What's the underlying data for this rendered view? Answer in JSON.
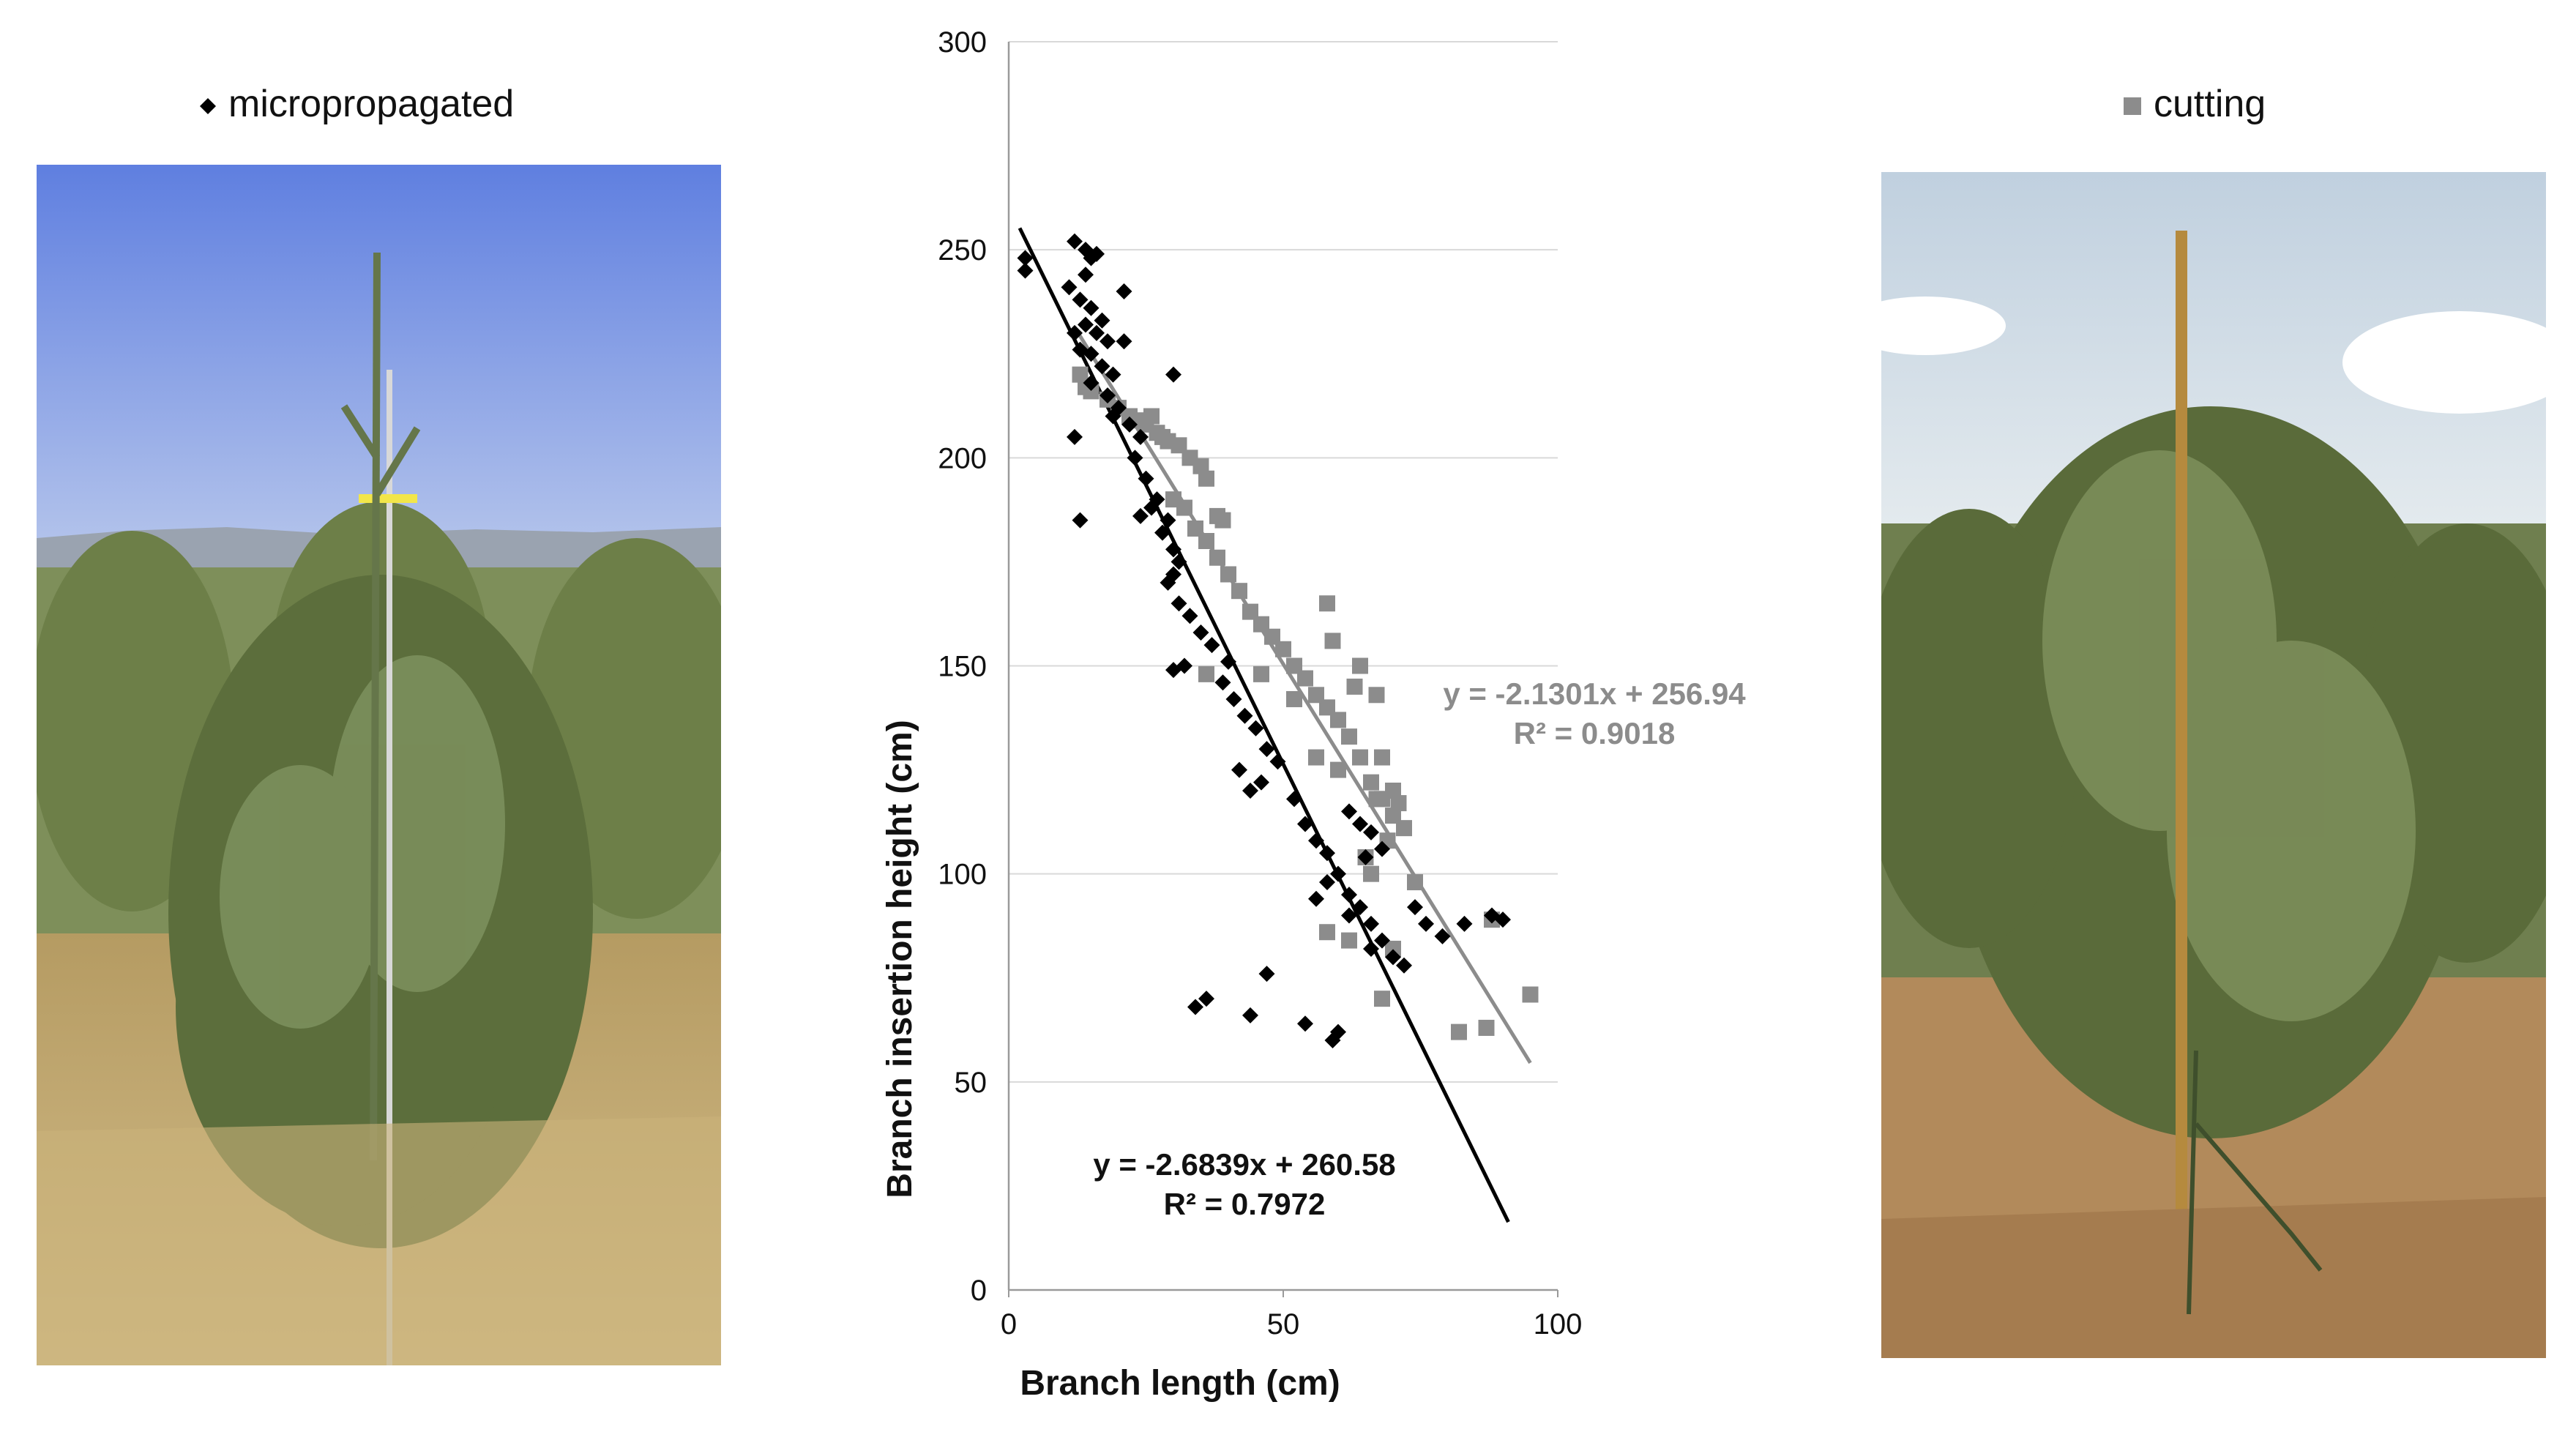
{
  "legend": {
    "micropropagated_label": "micropropagated",
    "cutting_label": "cutting"
  },
  "photos": {
    "left_icon": "olive-tree-photo",
    "right_icon": "olive-tree-photo"
  },
  "colors": {
    "micropropagated": "#000000",
    "cutting": "#8c8c8c",
    "micropropagated_line": "#000000",
    "cutting_line": "#8c8c8c",
    "grid": "#d9d9d9",
    "axis": "#9a9a9a"
  },
  "chart_data": {
    "type": "scatter",
    "xlabel": "Branch length (cm)",
    "ylabel": "Branch insertion height (cm)",
    "xlim": [
      0,
      100
    ],
    "ylim": [
      0,
      300
    ],
    "x_ticks": [
      "0",
      "50",
      "100"
    ],
    "y_ticks": [
      "0",
      "50",
      "100",
      "150",
      "200",
      "250",
      "300"
    ],
    "grid": "horizontal",
    "series": [
      {
        "name": "micropropagated",
        "marker": "diamond",
        "points": [
          [
            3,
            248
          ],
          [
            3,
            245
          ],
          [
            12,
            252
          ],
          [
            14,
            250
          ],
          [
            15,
            248
          ],
          [
            16,
            249
          ],
          [
            14,
            244
          ],
          [
            11,
            241
          ],
          [
            13,
            238
          ],
          [
            15,
            236
          ],
          [
            17,
            233
          ],
          [
            12,
            230
          ],
          [
            14,
            232
          ],
          [
            16,
            230
          ],
          [
            18,
            228
          ],
          [
            13,
            226
          ],
          [
            15,
            225
          ],
          [
            17,
            222
          ],
          [
            19,
            220
          ],
          [
            21,
            240
          ],
          [
            21,
            228
          ],
          [
            15,
            218
          ],
          [
            18,
            215
          ],
          [
            20,
            212
          ],
          [
            22,
            208
          ],
          [
            24,
            205
          ],
          [
            19,
            210
          ],
          [
            23,
            200
          ],
          [
            25,
            195
          ],
          [
            27,
            190
          ],
          [
            29,
            185
          ],
          [
            26,
            188
          ],
          [
            28,
            182
          ],
          [
            30,
            178
          ],
          [
            31,
            175
          ],
          [
            30,
            172
          ],
          [
            29,
            170
          ],
          [
            31,
            165
          ],
          [
            33,
            162
          ],
          [
            35,
            158
          ],
          [
            37,
            155
          ],
          [
            32,
            150
          ],
          [
            30,
            149
          ],
          [
            39,
            146
          ],
          [
            41,
            142
          ],
          [
            43,
            138
          ],
          [
            45,
            135
          ],
          [
            47,
            130
          ],
          [
            49,
            127
          ],
          [
            42,
            125
          ],
          [
            46,
            122
          ],
          [
            44,
            120
          ],
          [
            52,
            118
          ],
          [
            54,
            112
          ],
          [
            56,
            108
          ],
          [
            58,
            105
          ],
          [
            60,
            100
          ],
          [
            62,
            95
          ],
          [
            64,
            92
          ],
          [
            66,
            88
          ],
          [
            68,
            84
          ],
          [
            70,
            80
          ],
          [
            72,
            78
          ],
          [
            74,
            92
          ],
          [
            76,
            88
          ],
          [
            79,
            85
          ],
          [
            83,
            88
          ],
          [
            88,
            90
          ],
          [
            90,
            89
          ],
          [
            62,
            115
          ],
          [
            64,
            112
          ],
          [
            66,
            110
          ],
          [
            68,
            106
          ],
          [
            65,
            104
          ],
          [
            58,
            98
          ],
          [
            56,
            94
          ],
          [
            13,
            185
          ],
          [
            24,
            186
          ],
          [
            30,
            220
          ],
          [
            40,
            151
          ],
          [
            36,
            70
          ],
          [
            34,
            68
          ],
          [
            44,
            66
          ],
          [
            47,
            76
          ],
          [
            54,
            64
          ],
          [
            59,
            60
          ],
          [
            60,
            62
          ],
          [
            62,
            90
          ],
          [
            66,
            82
          ],
          [
            12,
            205
          ]
        ]
      },
      {
        "name": "cutting",
        "marker": "square",
        "points": [
          [
            13,
            220
          ],
          [
            14,
            217
          ],
          [
            15,
            216
          ],
          [
            18,
            214
          ],
          [
            20,
            212
          ],
          [
            22,
            210
          ],
          [
            24,
            209
          ],
          [
            25,
            208
          ],
          [
            26,
            210
          ],
          [
            27,
            206
          ],
          [
            28,
            205
          ],
          [
            29,
            204
          ],
          [
            31,
            203
          ],
          [
            33,
            200
          ],
          [
            35,
            198
          ],
          [
            36,
            195
          ],
          [
            38,
            186
          ],
          [
            39,
            185
          ],
          [
            30,
            190
          ],
          [
            32,
            188
          ],
          [
            34,
            183
          ],
          [
            36,
            180
          ],
          [
            38,
            176
          ],
          [
            40,
            172
          ],
          [
            42,
            168
          ],
          [
            44,
            163
          ],
          [
            46,
            160
          ],
          [
            48,
            157
          ],
          [
            50,
            154
          ],
          [
            52,
            150
          ],
          [
            54,
            147
          ],
          [
            56,
            143
          ],
          [
            58,
            140
          ],
          [
            60,
            137
          ],
          [
            62,
            133
          ],
          [
            64,
            128
          ],
          [
            66,
            122
          ],
          [
            68,
            118
          ],
          [
            70,
            114
          ],
          [
            72,
            111
          ],
          [
            74,
            98
          ],
          [
            63,
            145
          ],
          [
            64,
            150
          ],
          [
            59,
            156
          ],
          [
            58,
            165
          ],
          [
            67,
            143
          ],
          [
            52,
            142
          ],
          [
            46,
            148
          ],
          [
            36,
            148
          ],
          [
            56,
            128
          ],
          [
            60,
            125
          ],
          [
            65,
            104
          ],
          [
            66,
            100
          ],
          [
            67,
            118
          ],
          [
            70,
            120
          ],
          [
            68,
            128
          ],
          [
            69,
            108
          ],
          [
            71,
            117
          ],
          [
            58,
            86
          ],
          [
            62,
            84
          ],
          [
            70,
            82
          ],
          [
            68,
            70
          ],
          [
            82,
            62
          ],
          [
            87,
            63
          ],
          [
            88,
            89
          ],
          [
            95,
            71
          ]
        ]
      }
    ],
    "trendlines": [
      {
        "series": "micropropagated",
        "slope": -2.6839,
        "intercept": 260.58,
        "x_range": [
          2,
          91
        ],
        "equation": "y = -2.6839x + 260.58",
        "r2": "R² = 0.7972"
      },
      {
        "series": "cutting",
        "slope": -2.1301,
        "intercept": 256.94,
        "x_range": [
          12,
          95
        ],
        "equation": "y = -2.1301x + 256.94",
        "r2": "R² = 0.9018"
      }
    ]
  }
}
